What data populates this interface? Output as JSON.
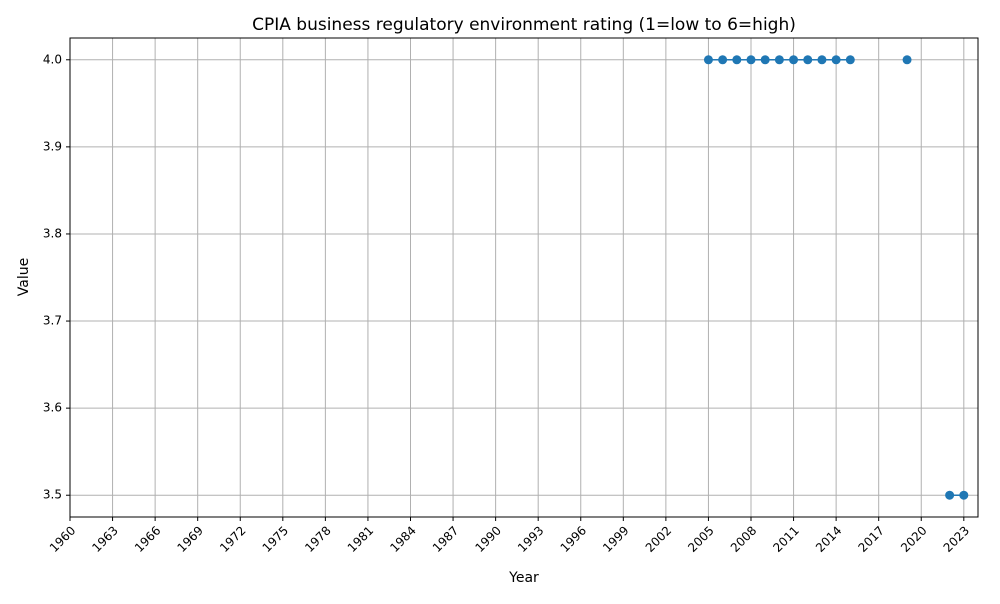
{
  "chart_data": {
    "type": "line",
    "title": "CPIA business regulatory environment rating (1=low to 6=high)",
    "xlabel": "Year",
    "ylabel": "Value",
    "xlim": [
      1960,
      2024
    ],
    "ylim": [
      3.475,
      4.025
    ],
    "grid": true,
    "x_ticks": [
      "1960",
      "1963",
      "1966",
      "1969",
      "1972",
      "1975",
      "1978",
      "1981",
      "1984",
      "1987",
      "1990",
      "1993",
      "1996",
      "1999",
      "2002",
      "2005",
      "2008",
      "2011",
      "2014",
      "2017",
      "2020",
      "2023"
    ],
    "y_ticks": [
      "3.5",
      "3.6",
      "3.7",
      "3.8",
      "3.9",
      "4.0"
    ],
    "series": [
      {
        "color": "#1f77b4",
        "points": [
          {
            "x": 2005,
            "y": 4.0
          },
          {
            "x": 2006,
            "y": 4.0
          },
          {
            "x": 2007,
            "y": 4.0
          },
          {
            "x": 2008,
            "y": 4.0
          },
          {
            "x": 2009,
            "y": 4.0
          },
          {
            "x": 2010,
            "y": 4.0
          },
          {
            "x": 2011,
            "y": 4.0
          },
          {
            "x": 2012,
            "y": 4.0
          },
          {
            "x": 2013,
            "y": 4.0
          },
          {
            "x": 2014,
            "y": 4.0
          },
          {
            "x": 2015,
            "y": 4.0
          },
          {
            "x": 2019,
            "y": 4.0
          },
          {
            "x": 2022,
            "y": 3.5
          },
          {
            "x": 2023,
            "y": 3.5
          }
        ]
      }
    ]
  }
}
